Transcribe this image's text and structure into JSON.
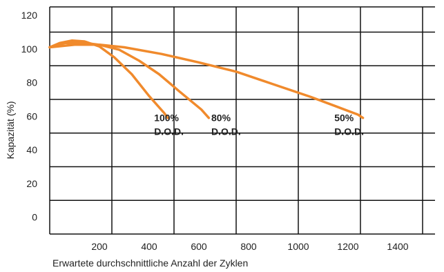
{
  "chart_data": {
    "type": "line",
    "xlabel": "Erwartete durchschnittliche Anzahl der Zyklen",
    "ylabel": "Kapazität (%)",
    "xlim": [
      0,
      1550
    ],
    "ylim": [
      -10,
      125
    ],
    "x_ticks": [
      200,
      400,
      600,
      800,
      1000,
      1200,
      1400
    ],
    "y_ticks": [
      0,
      20,
      40,
      60,
      80,
      100,
      120
    ],
    "x_tick_labels": [
      "200",
      "400",
      "600",
      "800",
      "1000",
      "1200",
      "1400"
    ],
    "y_tick_labels": [
      "0",
      "20",
      "40",
      "60",
      "80",
      "100",
      "120"
    ],
    "x_gridlines": [
      0,
      250,
      500,
      750,
      1000,
      1250,
      1500
    ],
    "y_gridlines": [
      -10,
      10,
      30,
      50,
      70,
      90,
      110,
      125
    ],
    "grid": true,
    "line_color": "#F08A2C",
    "series": [
      {
        "points": [
          [
            0,
            101
          ],
          [
            40,
            103.5
          ],
          [
            90,
            105
          ],
          [
            140,
            104.5
          ],
          [
            200,
            101.5
          ],
          [
            260,
            95
          ],
          [
            330,
            85
          ],
          [
            400,
            72
          ],
          [
            460,
            62
          ],
          [
            475,
            59
          ]
        ]
      },
      {
        "points": [
          [
            0,
            101
          ],
          [
            60,
            103.5
          ],
          [
            130,
            103.8
          ],
          [
            200,
            102.5
          ],
          [
            280,
            99.5
          ],
          [
            360,
            93
          ],
          [
            440,
            85
          ],
          [
            520,
            75
          ],
          [
            610,
            64
          ],
          [
            640,
            59
          ]
        ]
      },
      {
        "points": [
          [
            0,
            101
          ],
          [
            100,
            102.5
          ],
          [
            200,
            102.5
          ],
          [
            300,
            101
          ],
          [
            450,
            97
          ],
          [
            600,
            92
          ],
          [
            750,
            86.5
          ],
          [
            900,
            79
          ],
          [
            1050,
            71.5
          ],
          [
            1150,
            66
          ],
          [
            1240,
            61
          ],
          [
            1260,
            59
          ]
        ]
      }
    ],
    "annotations": [
      {
        "lines": [
          "100%",
          "D.O.D."
        ],
        "x": 420,
        "y": 57
      },
      {
        "lines": [
          "80%",
          "D.O.D."
        ],
        "x": 650,
        "y": 57
      },
      {
        "lines": [
          "50%",
          "D.O.D."
        ],
        "x": 1145,
        "y": 57
      }
    ]
  }
}
